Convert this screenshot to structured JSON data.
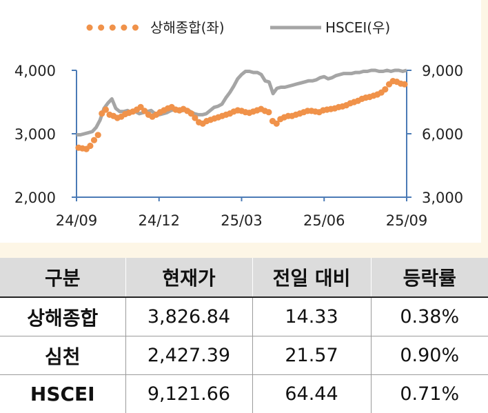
{
  "chart_data": {
    "type": "line",
    "x_ticks": [
      "24/09",
      "24/12",
      "25/03",
      "25/06",
      "25/09"
    ],
    "y_left": {
      "ticks": [
        "4,000",
        "3,000",
        "2,000"
      ],
      "range": [
        2000,
        4000
      ]
    },
    "y_right": {
      "ticks": [
        "9,000",
        "6,000",
        "3,000"
      ],
      "range": [
        3000,
        9000
      ]
    },
    "legend": {
      "position": "top",
      "entries": [
        "상해종합(좌)",
        "HSCEI(우)"
      ]
    },
    "series": [
      {
        "name": "상해종합(좌)",
        "axis": "left",
        "style": "dotted",
        "color": "#f0924a",
        "values": [
          2780,
          2770,
          2760,
          2810,
          2900,
          2980,
          3320,
          3380,
          3300,
          3280,
          3250,
          3270,
          3310,
          3330,
          3350,
          3380,
          3420,
          3360,
          3300,
          3270,
          3300,
          3340,
          3370,
          3400,
          3420,
          3380,
          3370,
          3390,
          3360,
          3320,
          3250,
          3180,
          3160,
          3200,
          3220,
          3240,
          3260,
          3280,
          3300,
          3320,
          3350,
          3370,
          3360,
          3340,
          3330,
          3350,
          3370,
          3390,
          3360,
          3340,
          3200,
          3160,
          3230,
          3260,
          3280,
          3280,
          3300,
          3320,
          3340,
          3360,
          3360,
          3350,
          3340,
          3370,
          3380,
          3390,
          3400,
          3420,
          3430,
          3450,
          3480,
          3500,
          3520,
          3550,
          3570,
          3580,
          3600,
          3620,
          3650,
          3700,
          3780,
          3830,
          3820,
          3790,
          3780
        ]
      },
      {
        "name": "HSCEI(우)",
        "axis": "right",
        "style": "solid",
        "color": "#a5a5a5",
        "values": [
          5950,
          5950,
          6000,
          6050,
          6100,
          6300,
          6650,
          7200,
          7450,
          7650,
          7200,
          7050,
          7050,
          7100,
          7000,
          7050,
          6950,
          7000,
          7050,
          7100,
          6950,
          6900,
          6950,
          7000,
          7100,
          7150,
          7050,
          7100,
          7150,
          7050,
          6950,
          6900,
          6900,
          6950,
          7100,
          7250,
          7300,
          7400,
          7700,
          7950,
          8250,
          8600,
          8800,
          8950,
          8950,
          8900,
          8900,
          8800,
          8500,
          8450,
          7900,
          8150,
          8200,
          8200,
          8250,
          8300,
          8350,
          8400,
          8450,
          8500,
          8500,
          8550,
          8650,
          8700,
          8600,
          8650,
          8750,
          8800,
          8850,
          8850,
          8850,
          8900,
          8900,
          8950,
          8950,
          9000,
          9000,
          8950,
          8950,
          9000,
          8950,
          9000,
          9000,
          8950,
          9000
        ]
      }
    ]
  },
  "table": {
    "headers": [
      "구분",
      "현재가",
      "전일 대비",
      "등락률"
    ],
    "rows": [
      [
        "상해종합",
        "3,826.84",
        "14.33",
        "0.38%"
      ],
      [
        "심천",
        "2,427.39",
        "21.57",
        "0.90%"
      ],
      [
        "HSCEI",
        "9,121.66",
        "64.44",
        "0.71%"
      ]
    ]
  }
}
